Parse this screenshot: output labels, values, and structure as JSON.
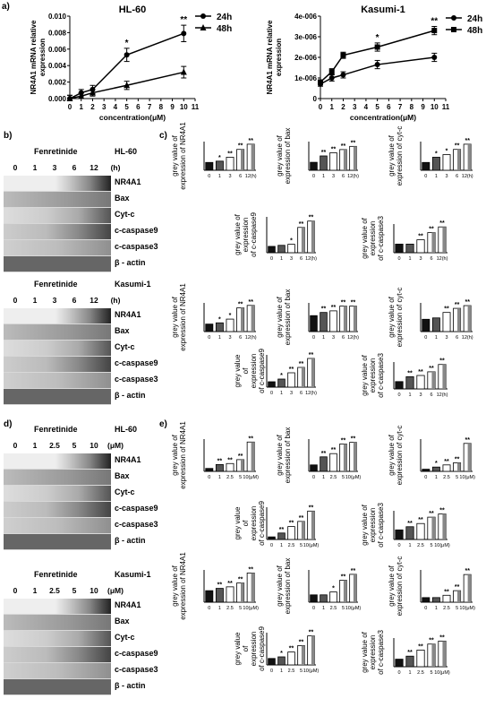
{
  "panels": {
    "a": "a)",
    "b": "b)",
    "c": "c)",
    "d": "d)",
    "e": "e)"
  },
  "chart_data": [
    {
      "type": "line",
      "title": "HL-60",
      "xlabel": "concentration(μM)",
      "ylabel": "NR4A1 mRNA relative expression",
      "x": [
        0,
        1,
        2,
        5,
        10
      ],
      "xlim": [
        0,
        11
      ],
      "xticks": [
        "0",
        "1",
        "2",
        "3",
        "4",
        "5",
        "6",
        "7",
        "8",
        "9",
        "10",
        "11"
      ],
      "ylim": [
        0,
        0.01
      ],
      "yticks": [
        "0.000",
        "0.002",
        "0.004",
        "0.006",
        "0.008",
        "0.010"
      ],
      "series": [
        {
          "name": "24h",
          "values": [
            0,
            0.0007,
            0.0011,
            0.0053,
            0.0079
          ],
          "err": [
            0.0004,
            0.0004,
            0.0005,
            0.0008,
            0.001
          ],
          "marker": "circle"
        },
        {
          "name": "48h",
          "values": [
            0,
            0.0003,
            0.0007,
            0.0016,
            0.0032
          ],
          "err": [
            0.0004,
            0.0004,
            0.0004,
            0.0005,
            0.0007
          ],
          "marker": "triangle"
        }
      ],
      "annotations": [
        {
          "x": 5,
          "text": "*"
        },
        {
          "x": 10,
          "text": "**"
        }
      ],
      "legend": "top-right"
    },
    {
      "type": "line",
      "title": "Kasumi-1",
      "xlabel": "concentration(μM)",
      "ylabel": "NR4A1 mRNA relative expression",
      "x": [
        0,
        1,
        2,
        5,
        10
      ],
      "xlim": [
        0,
        11
      ],
      "xticks": [
        "0",
        "1",
        "2",
        "3",
        "4",
        "5",
        "6",
        "7",
        "8",
        "9",
        "10",
        "11"
      ],
      "ylim": [
        0,
        4e-06
      ],
      "yticks": [
        "0",
        "1e-006",
        "2e-006",
        "3e-006",
        "4e-006"
      ],
      "series": [
        {
          "name": "24h",
          "values": [
            7e-07,
            1e-06,
            1.15e-06,
            1.65e-06,
            2e-06
          ],
          "err": [
            1e-07,
            1.5e-07,
            1.5e-07,
            2e-07,
            2e-07
          ],
          "marker": "circle"
        },
        {
          "name": "48h",
          "values": [
            8e-07,
            1.3e-06,
            2.1e-06,
            2.5e-06,
            3.3e-06
          ],
          "err": [
            1e-07,
            1.5e-07,
            1.5e-07,
            2e-07,
            2e-07
          ],
          "marker": "square"
        }
      ],
      "annotations": [
        {
          "x": 5,
          "text": "*"
        },
        {
          "x": 10,
          "text": "**"
        }
      ],
      "legend": "top-right"
    }
  ],
  "blots": {
    "b_hl60": {
      "drug": "Fenretinide",
      "cell": "HL-60",
      "lanes": [
        "0",
        "1",
        "3",
        "6",
        "12"
      ],
      "unit": "(h)",
      "bands": [
        "NR4A1",
        "Bax",
        "Cyt-c",
        "c-caspase9",
        "c-caspase3",
        "β - actin"
      ]
    },
    "b_kasumi": {
      "drug": "Fenretinide",
      "cell": "Kasumi-1",
      "lanes": [
        "0",
        "1",
        "3",
        "6",
        "12"
      ],
      "unit": "(h)",
      "bands": [
        "NR4A1",
        "Bax",
        "Cyt-c",
        "c-caspase9",
        "c-caspase3",
        "β - actin"
      ]
    },
    "d_hl60": {
      "drug": "Fenretinide",
      "cell": "HL-60",
      "lanes": [
        "0",
        "1",
        "2.5",
        "5",
        "10"
      ],
      "unit": "(μM)",
      "bands": [
        "NR4A1",
        "Bax",
        "Cyt-c",
        "c-caspase9",
        "c-caspase3",
        "β - actin"
      ]
    },
    "d_kasumi": {
      "drug": "Fenretinide",
      "cell": "Kasumi-1",
      "lanes": [
        "0",
        "1",
        "2.5",
        "5",
        "10"
      ],
      "unit": "(μM)",
      "bands": [
        "NR4A1",
        "Bax",
        "Cyt-c",
        "c-caspase9",
        "c-caspase3",
        "β - actin"
      ]
    }
  },
  "bar_axes": {
    "time_cats": [
      "0",
      "1",
      "3",
      "6",
      "12(h)"
    ],
    "conc_cats": [
      "0",
      "1",
      "2.5",
      "5",
      "10(μM)"
    ]
  }
}
